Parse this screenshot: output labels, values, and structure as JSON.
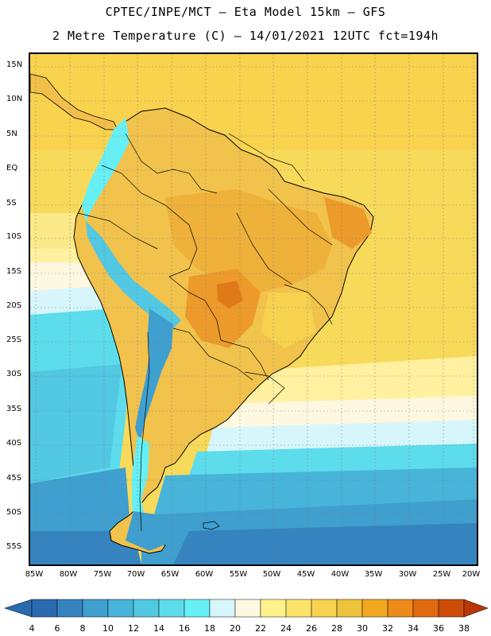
{
  "title_line1": "CPTEC/INPE/MCT –  Eta Model 15km – GFS",
  "title_line2": "2 Metre Temperature (C) – 14/01/2021 12UTC fct=194h",
  "lat_labels": [
    "15N",
    "10N",
    "5N",
    "EQ",
    "5S",
    "10S",
    "15S",
    "20S",
    "25S",
    "30S",
    "35S",
    "40S",
    "45S",
    "50S",
    "55S"
  ],
  "lon_labels": [
    "85W",
    "80W",
    "75W",
    "70W",
    "65W",
    "60W",
    "55W",
    "50W",
    "45W",
    "40W",
    "35W",
    "30W",
    "25W",
    "20W"
  ],
  "colorbar": {
    "labels": [
      "4",
      "6",
      "8",
      "10",
      "12",
      "14",
      "16",
      "18",
      "20",
      "22",
      "24",
      "26",
      "28",
      "30",
      "32",
      "34",
      "36",
      "38"
    ],
    "colors": [
      "#2a6aae",
      "#3584c0",
      "#3f9fce",
      "#48b4d9",
      "#52c8e2",
      "#5ddcec",
      "#66f0f6",
      "#d6f6fb",
      "#fff8e0",
      "#fff28a",
      "#fbe36a",
      "#f6d24e",
      "#eec23a",
      "#f2a81e",
      "#ec8a1a",
      "#e06a10",
      "#cc4d08",
      "#b83808"
    ],
    "arrow_left": "#2a6aae",
    "arrow_right": "#b83808"
  }
}
